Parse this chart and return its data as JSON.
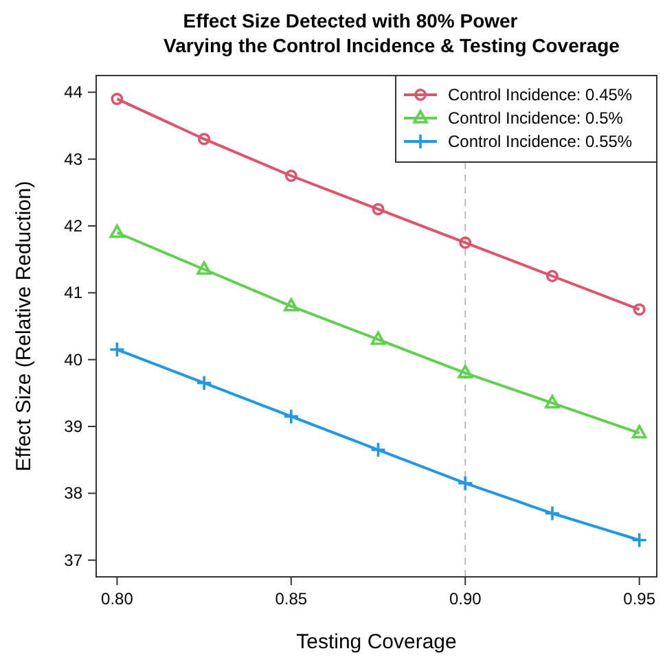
{
  "chart_data": {
    "type": "line",
    "title": "Effect Size Detected with 80% Power\nVarying the Control Incidence & Testing Coverage",
    "xlabel": "Testing Coverage",
    "ylabel": "Effect Size (Relative Reduction)",
    "x": [
      0.8,
      0.825,
      0.85,
      0.875,
      0.9,
      0.925,
      0.95
    ],
    "xlim": [
      0.794,
      0.955
    ],
    "xticks": [
      {
        "value": 0.8,
        "label": "0.80"
      },
      {
        "value": 0.85,
        "label": "0.85"
      },
      {
        "value": 0.9,
        "label": "0.90"
      },
      {
        "value": 0.95,
        "label": "0.95"
      }
    ],
    "ylim": [
      36.75,
      44.25
    ],
    "yticks": [
      37,
      38,
      39,
      40,
      41,
      42,
      43,
      44
    ],
    "series": [
      {
        "name": "Control Incidence: 0.45%",
        "color": "#df536b",
        "marker": "circle",
        "values": [
          43.9,
          43.3,
          42.75,
          42.25,
          41.75,
          41.25,
          40.75
        ]
      },
      {
        "name": "Control Incidence: 0.5%",
        "color": "#61d04f",
        "marker": "triangle",
        "values": [
          41.9,
          41.35,
          40.8,
          40.3,
          39.8,
          39.35,
          38.9
        ]
      },
      {
        "name": "Control Incidence: 0.55%",
        "color": "#2297e6",
        "marker": "cross",
        "values": [
          40.15,
          39.65,
          39.15,
          38.65,
          38.15,
          37.7,
          37.3
        ]
      }
    ],
    "ref_lines": [
      {
        "axis": "x",
        "value": 0.9,
        "color": "#bbbbbb",
        "line_style": "dashed"
      }
    ],
    "legend": "top right",
    "grid": false,
    "line_style": "solid"
  }
}
